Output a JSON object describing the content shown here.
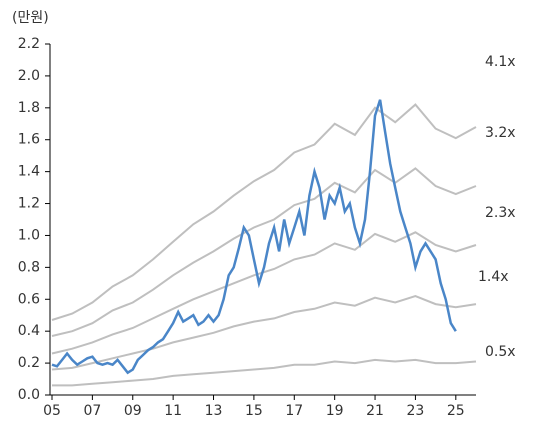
{
  "chart_data": {
    "type": "line",
    "y_label": "(만원)",
    "xlim": [
      2005,
      2026
    ],
    "ylim": [
      0,
      2.2
    ],
    "xticks": [
      {
        "value": 2005,
        "label": "05"
      },
      {
        "value": 2007,
        "label": "07"
      },
      {
        "value": 2009,
        "label": "09"
      },
      {
        "value": 2011,
        "label": "11"
      },
      {
        "value": 2013,
        "label": "13"
      },
      {
        "value": 2015,
        "label": "15"
      },
      {
        "value": 2017,
        "label": "17"
      },
      {
        "value": 2019,
        "label": "19"
      },
      {
        "value": 2021,
        "label": "21"
      },
      {
        "value": 2023,
        "label": "23"
      },
      {
        "value": 2025,
        "label": "25"
      }
    ],
    "yticks": [
      {
        "value": 0,
        "label": "0.0"
      },
      0.2,
      0.4,
      0.6,
      0.8,
      {
        "value": 1,
        "label": "1.0"
      },
      1.2,
      1.4,
      1.6,
      1.8,
      {
        "value": 2,
        "label": "2.0"
      },
      2.2
    ],
    "series": [
      {
        "name": "4.1x",
        "color": "#bfbfbf",
        "x": [
          2005,
          2006,
          2007,
          2008,
          2009,
          2010,
          2011,
          2012,
          2013,
          2014,
          2015,
          2016,
          2017,
          2018,
          2019,
          2020,
          2021,
          2022,
          2023,
          2024,
          2025,
          2026
        ],
        "values": [
          0.47,
          0.51,
          0.58,
          0.68,
          0.75,
          0.85,
          0.96,
          1.07,
          1.15,
          1.25,
          1.34,
          1.41,
          1.52,
          1.57,
          1.7,
          1.63,
          1.8,
          1.71,
          1.82,
          1.67,
          1.61,
          1.68
        ]
      },
      {
        "name": "3.2x",
        "color": "#bfbfbf",
        "x": [
          2005,
          2006,
          2007,
          2008,
          2009,
          2010,
          2011,
          2012,
          2013,
          2014,
          2015,
          2016,
          2017,
          2018,
          2019,
          2020,
          2021,
          2022,
          2023,
          2024,
          2025,
          2026
        ],
        "values": [
          0.37,
          0.4,
          0.45,
          0.53,
          0.58,
          0.66,
          0.75,
          0.83,
          0.9,
          0.98,
          1.05,
          1.1,
          1.19,
          1.23,
          1.33,
          1.27,
          1.41,
          1.33,
          1.42,
          1.31,
          1.26,
          1.31
        ]
      },
      {
        "name": "2.3x",
        "color": "#bfbfbf",
        "x": [
          2005,
          2006,
          2007,
          2008,
          2009,
          2010,
          2011,
          2012,
          2013,
          2014,
          2015,
          2016,
          2017,
          2018,
          2019,
          2020,
          2021,
          2022,
          2023,
          2024,
          2025,
          2026
        ],
        "values": [
          0.26,
          0.29,
          0.33,
          0.38,
          0.42,
          0.48,
          0.54,
          0.6,
          0.65,
          0.7,
          0.75,
          0.79,
          0.85,
          0.88,
          0.95,
          0.91,
          1.01,
          0.96,
          1.02,
          0.94,
          0.9,
          0.94
        ]
      },
      {
        "name": "1.4x",
        "color": "#bfbfbf",
        "x": [
          2005,
          2006,
          2007,
          2008,
          2009,
          2010,
          2011,
          2012,
          2013,
          2014,
          2015,
          2016,
          2017,
          2018,
          2019,
          2020,
          2021,
          2022,
          2023,
          2024,
          2025,
          2026
        ],
        "values": [
          0.16,
          0.17,
          0.2,
          0.23,
          0.26,
          0.29,
          0.33,
          0.36,
          0.39,
          0.43,
          0.46,
          0.48,
          0.52,
          0.54,
          0.58,
          0.56,
          0.61,
          0.58,
          0.62,
          0.57,
          0.55,
          0.57
        ]
      },
      {
        "name": "0.5x",
        "color": "#bfbfbf",
        "x": [
          2005,
          2006,
          2007,
          2008,
          2009,
          2010,
          2011,
          2012,
          2013,
          2014,
          2015,
          2016,
          2017,
          2018,
          2019,
          2020,
          2021,
          2022,
          2023,
          2024,
          2025,
          2026
        ],
        "values": [
          0.06,
          0.06,
          0.07,
          0.08,
          0.09,
          0.1,
          0.12,
          0.13,
          0.14,
          0.15,
          0.16,
          0.17,
          0.19,
          0.19,
          0.21,
          0.2,
          0.22,
          0.21,
          0.22,
          0.2,
          0.2,
          0.21
        ]
      },
      {
        "color": "#4a86c8",
        "x": [
          2005,
          2005.25,
          2005.5,
          2005.75,
          2006,
          2006.25,
          2006.5,
          2006.75,
          2007,
          2007.25,
          2007.5,
          2007.75,
          2008,
          2008.25,
          2008.5,
          2008.75,
          2009,
          2009.25,
          2009.5,
          2009.75,
          2010,
          2010.25,
          2010.5,
          2010.75,
          2011,
          2011.25,
          2011.5,
          2011.75,
          2012,
          2012.25,
          2012.5,
          2012.75,
          2013,
          2013.25,
          2013.5,
          2013.75,
          2014,
          2014.25,
          2014.5,
          2014.75,
          2015,
          2015.25,
          2015.5,
          2015.75,
          2016,
          2016.25,
          2016.5,
          2016.75,
          2017,
          2017.25,
          2017.5,
          2017.75,
          2018,
          2018.25,
          2018.5,
          2018.75,
          2019,
          2019.25,
          2019.5,
          2019.75,
          2020,
          2020.25,
          2020.5,
          2020.75,
          2021,
          2021.25,
          2021.5,
          2021.75,
          2022,
          2022.25,
          2022.5,
          2022.75,
          2023,
          2023.25,
          2023.5,
          2023.75,
          2024,
          2024.25,
          2024.5,
          2024.75,
          2025
        ],
        "values": [
          0.19,
          0.18,
          0.22,
          0.26,
          0.22,
          0.19,
          0.21,
          0.23,
          0.24,
          0.2,
          0.19,
          0.2,
          0.19,
          0.22,
          0.18,
          0.14,
          0.16,
          0.22,
          0.25,
          0.28,
          0.3,
          0.33,
          0.35,
          0.4,
          0.45,
          0.52,
          0.46,
          0.48,
          0.5,
          0.44,
          0.46,
          0.5,
          0.46,
          0.5,
          0.6,
          0.75,
          0.8,
          0.92,
          1.05,
          1.0,
          0.85,
          0.7,
          0.8,
          0.95,
          1.05,
          0.9,
          1.1,
          0.95,
          1.05,
          1.15,
          1.0,
          1.25,
          1.4,
          1.3,
          1.1,
          1.25,
          1.2,
          1.3,
          1.15,
          1.2,
          1.05,
          0.95,
          1.1,
          1.4,
          1.75,
          1.85,
          1.65,
          1.45,
          1.3,
          1.15,
          1.05,
          0.95,
          0.8,
          0.9,
          0.95,
          0.9,
          0.85,
          0.7,
          0.6,
          0.45,
          0.4
        ]
      }
    ]
  }
}
